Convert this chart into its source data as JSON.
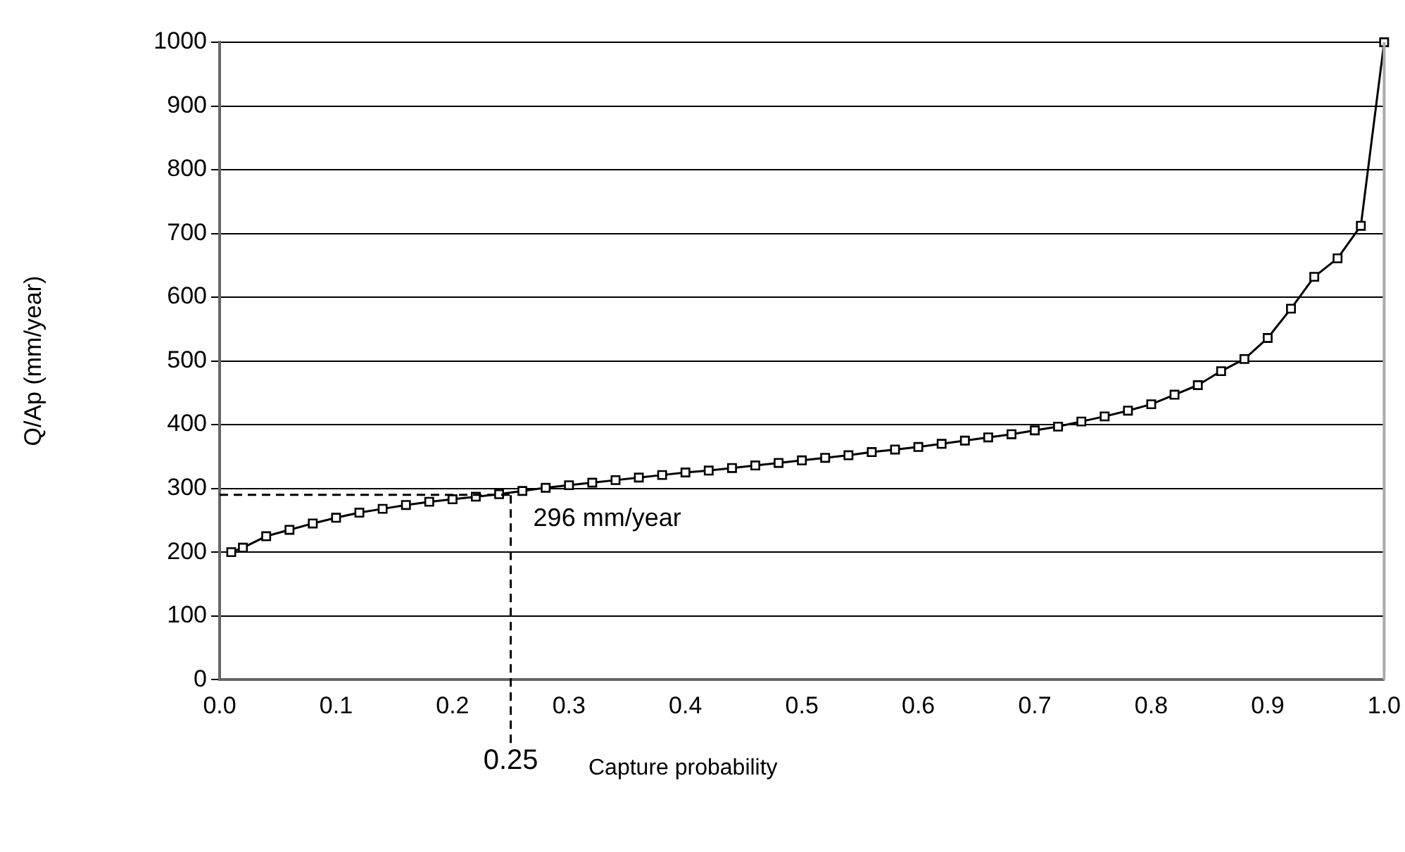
{
  "chart_data": {
    "type": "line",
    "xlabel": "Capture probability",
    "ylabel": "Q/Ap (mm/year)",
    "x": [
      0.01,
      0.02,
      0.04,
      0.06,
      0.08,
      0.1,
      0.12,
      0.14,
      0.16,
      0.18,
      0.2,
      0.22,
      0.24,
      0.26,
      0.28,
      0.3,
      0.32,
      0.34,
      0.36,
      0.38,
      0.4,
      0.42,
      0.44,
      0.46,
      0.48,
      0.5,
      0.52,
      0.54,
      0.56,
      0.58,
      0.6,
      0.62,
      0.64,
      0.66,
      0.68,
      0.7,
      0.72,
      0.74,
      0.76,
      0.78,
      0.8,
      0.82,
      0.84,
      0.86,
      0.88,
      0.9,
      0.92,
      0.94,
      0.96,
      0.98,
      1.0
    ],
    "series": [
      {
        "color": "#000000",
        "values": [
          200,
          207,
          225,
          235,
          245,
          254,
          262,
          268,
          274,
          279,
          283,
          287,
          291,
          296,
          301,
          305,
          309,
          313,
          317,
          321,
          325,
          328,
          332,
          336,
          340,
          344,
          348,
          352,
          357,
          361,
          365,
          370,
          375,
          380,
          385,
          391,
          397,
          405,
          413,
          422,
          432,
          447,
          462,
          484,
          503,
          536,
          582,
          632,
          661,
          712,
          1000
        ]
      }
    ],
    "xlim": [
      0,
      1
    ],
    "xticks": [
      {
        "value": 0,
        "label": "0.0"
      },
      0.1,
      0.2,
      0.3,
      0.4,
      0.5,
      0.6,
      0.7,
      0.8,
      0.9,
      {
        "value": 1,
        "label": "1.0"
      }
    ],
    "ylim": [
      0,
      1000
    ],
    "yticks": [
      0,
      100,
      200,
      300,
      400,
      500,
      600,
      700,
      800,
      900,
      1000
    ],
    "grid": "y",
    "legend": false,
    "marker": "square",
    "line_style": "solid",
    "ref_lines": [
      {
        "axis": "x",
        "value": 0.25,
        "label": "0.25",
        "line_style": "dashed",
        "color": "#000000"
      },
      {
        "axis": "y",
        "value": 290,
        "label": null,
        "line_style": "dashed",
        "color": "#000000"
      }
    ],
    "annotations": [
      {
        "text": "296 mm/year",
        "x": 0.25,
        "y": 290
      }
    ]
  }
}
